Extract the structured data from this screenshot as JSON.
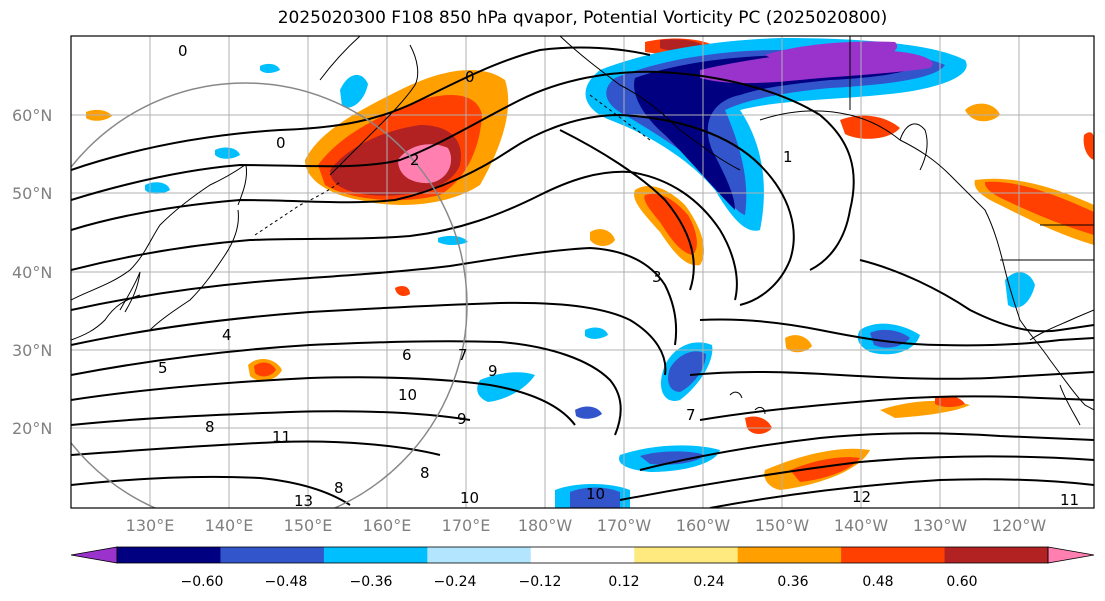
{
  "title": "2025020300 F108 850 hPa qvapor, Potential Vorticity PC (2025020800)",
  "lat_labels": [
    "60°N",
    "50°N",
    "40°N",
    "30°N",
    "20°N"
  ],
  "lon_labels": [
    "130°E",
    "140°E",
    "150°E",
    "160°E",
    "170°E",
    "180°W",
    "170°W",
    "160°W",
    "150°W",
    "140°W",
    "130°W",
    "120°W"
  ],
  "colorbar": {
    "colors": [
      "#9933cc",
      "#000080",
      "#3355cc",
      "#00bfff",
      "#b3e5ff",
      "#ffffff",
      "#ffea80",
      "#ffa000",
      "#ff4000",
      "#b22222",
      "#ff80b0"
    ],
    "tick_labels": [
      "−0.60",
      "−0.48",
      "−0.36",
      "−0.24",
      "−0.12",
      "0.12",
      "0.24",
      "0.36",
      "0.48",
      "0.60"
    ]
  },
  "contour_labels": [
    "0",
    "0",
    "0",
    "1",
    "2",
    "3",
    "4",
    "5",
    "6",
    "7",
    "7",
    "8",
    "8",
    "8",
    "9",
    "9",
    "10",
    "10",
    "10",
    "11",
    "11",
    "12",
    "13"
  ]
}
